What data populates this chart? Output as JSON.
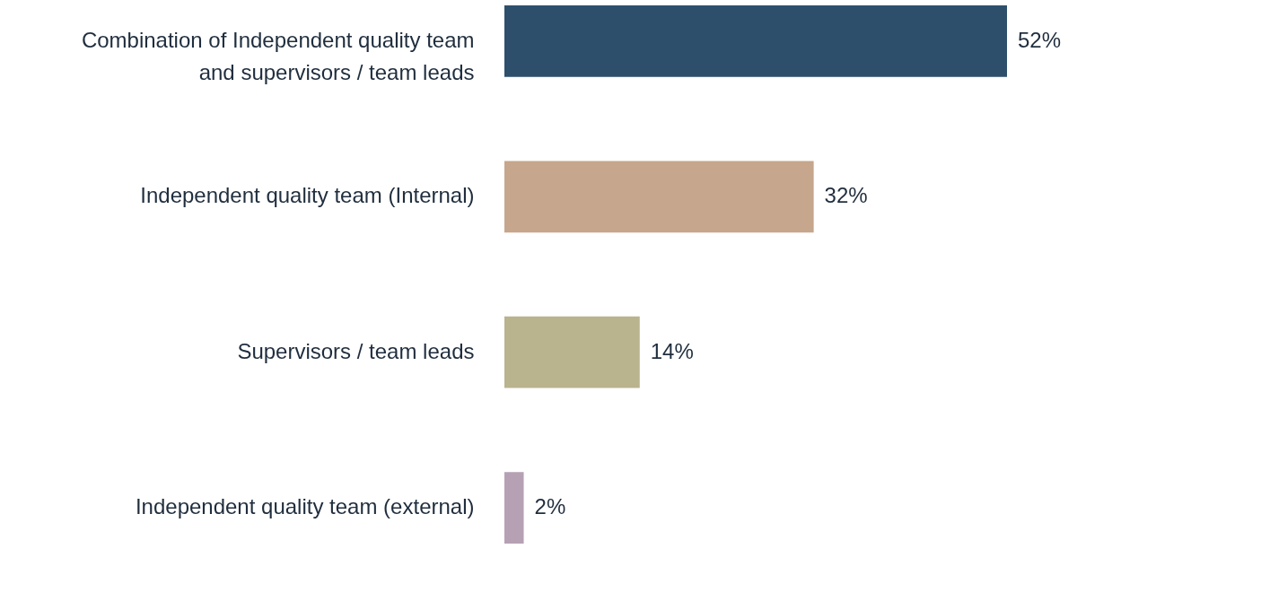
{
  "chart_data": {
    "type": "bar",
    "orientation": "horizontal",
    "categories": [
      "Combination of Independent quality team and supervisors / team leads",
      "Independent quality team (Internal)",
      "Supervisors / team leads",
      "Independent quality team (external)"
    ],
    "values": [
      52,
      32,
      14,
      2
    ],
    "value_labels": [
      "52%",
      "32%",
      "14%",
      "2%"
    ],
    "colors": [
      "#2d4f6b",
      "#c6a68c",
      "#b9b38e",
      "#b6a1b4"
    ],
    "grid": false
  }
}
